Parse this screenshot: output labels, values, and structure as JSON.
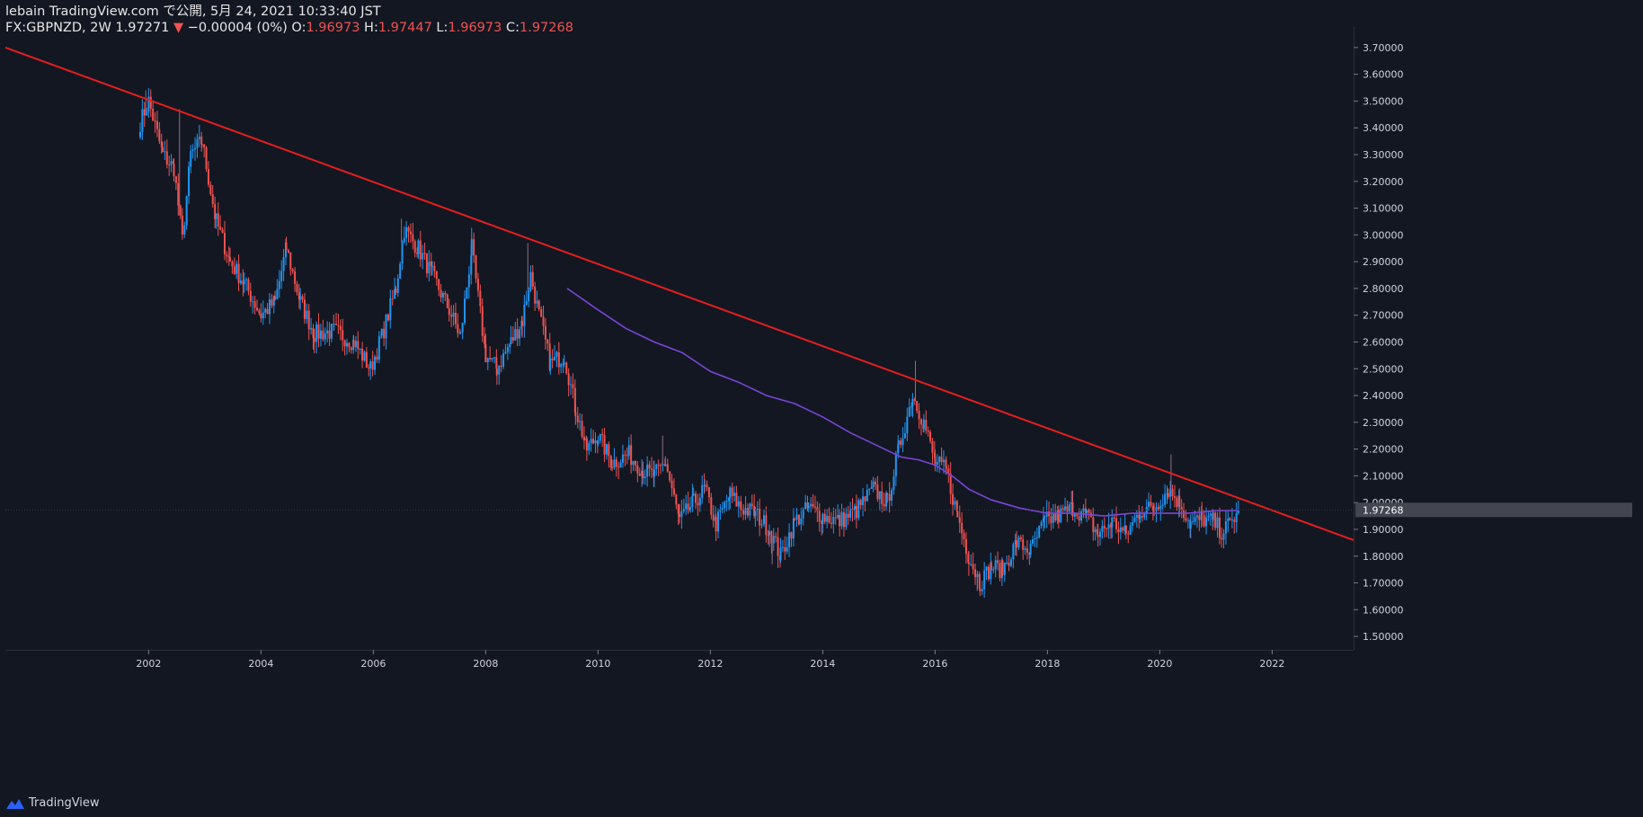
{
  "header": {
    "line1": "lebain TradingView.com で公開, 5月 24, 2021 10:33:40 JST",
    "symbol": "FX:GBPNZD, 2W",
    "last": "1.97271",
    "arrow": "▼",
    "change": "−0.00004 (0%)",
    "o_label": "O:",
    "o_val": "1.96973",
    "h_label": "H:",
    "h_val": "1.97447",
    "l_label": "L:",
    "l_val": "1.96973",
    "c_label": "C:",
    "c_val": "1.97268"
  },
  "footer": {
    "brand": "TradingView",
    "icon": "tradingview-logo-icon"
  },
  "colors": {
    "background": "#131722",
    "up": "#2196f3",
    "down": "#ef5350",
    "trendline": "#e61e1e",
    "ma": "#7b45d6",
    "grid_text": "#d1d4dc",
    "price_tag": "#434651"
  },
  "chart_data": {
    "type": "candlestick",
    "symbol": "FX:GBPNZD",
    "interval": "2W",
    "ylim": [
      1.45,
      3.75
    ],
    "xlim": [
      1999.45,
      2023.45
    ],
    "yticks": [
      "1.50000",
      "1.60000",
      "1.70000",
      "1.80000",
      "1.90000",
      "2.00000",
      "2.10000",
      "2.20000",
      "2.30000",
      "2.40000",
      "2.50000",
      "2.60000",
      "2.70000",
      "2.80000",
      "2.90000",
      "3.00000",
      "3.10000",
      "3.20000",
      "3.30000",
      "3.40000",
      "3.50000",
      "3.60000",
      "3.70000"
    ],
    "xticks": [
      "2002",
      "2004",
      "2006",
      "2008",
      "2010",
      "2012",
      "2014",
      "2016",
      "2018",
      "2020",
      "2022"
    ],
    "last_price": "1.97268",
    "close_path": [
      [
        2001.85,
        3.42
      ],
      [
        2002.0,
        3.5
      ],
      [
        2002.25,
        3.3
      ],
      [
        2002.45,
        3.25
      ],
      [
        2002.6,
        2.98
      ],
      [
        2002.75,
        3.3
      ],
      [
        2002.95,
        3.35
      ],
      [
        2003.2,
        3.05
      ],
      [
        2003.45,
        2.9
      ],
      [
        2003.7,
        2.82
      ],
      [
        2004.0,
        2.7
      ],
      [
        2004.25,
        2.75
      ],
      [
        2004.45,
        2.95
      ],
      [
        2004.7,
        2.75
      ],
      [
        2004.95,
        2.63
      ],
      [
        2005.3,
        2.64
      ],
      [
        2005.65,
        2.6
      ],
      [
        2005.95,
        2.5
      ],
      [
        2006.15,
        2.62
      ],
      [
        2006.4,
        2.8
      ],
      [
        2006.55,
        3.02
      ],
      [
        2006.8,
        2.95
      ],
      [
        2007.05,
        2.85
      ],
      [
        2007.35,
        2.72
      ],
      [
        2007.55,
        2.62
      ],
      [
        2007.75,
        2.95
      ],
      [
        2008.0,
        2.55
      ],
      [
        2008.2,
        2.5
      ],
      [
        2008.45,
        2.6
      ],
      [
        2008.65,
        2.68
      ],
      [
        2008.8,
        2.85
      ],
      [
        2008.95,
        2.7
      ],
      [
        2009.15,
        2.52
      ],
      [
        2009.4,
        2.55
      ],
      [
        2009.6,
        2.35
      ],
      [
        2009.8,
        2.2
      ],
      [
        2010.0,
        2.25
      ],
      [
        2010.25,
        2.15
      ],
      [
        2010.55,
        2.18
      ],
      [
        2010.8,
        2.12
      ],
      [
        2011.0,
        2.1
      ],
      [
        2011.2,
        2.15
      ],
      [
        2011.45,
        1.93
      ],
      [
        2011.7,
        2.0
      ],
      [
        2011.9,
        2.05
      ],
      [
        2012.1,
        1.92
      ],
      [
        2012.35,
        2.03
      ],
      [
        2012.55,
        1.98
      ],
      [
        2012.8,
        1.96
      ],
      [
        2013.05,
        1.9
      ],
      [
        2013.25,
        1.8
      ],
      [
        2013.5,
        1.93
      ],
      [
        2013.75,
        1.98
      ],
      [
        2014.0,
        1.95
      ],
      [
        2014.3,
        1.93
      ],
      [
        2014.6,
        1.97
      ],
      [
        2014.9,
        2.05
      ],
      [
        2015.15,
        2.0
      ],
      [
        2015.35,
        2.2
      ],
      [
        2015.6,
        2.4
      ],
      [
        2015.8,
        2.3
      ],
      [
        2016.0,
        2.15
      ],
      [
        2016.2,
        2.12
      ],
      [
        2016.4,
        1.95
      ],
      [
        2016.6,
        1.8
      ],
      [
        2016.8,
        1.7
      ],
      [
        2017.0,
        1.76
      ],
      [
        2017.2,
        1.75
      ],
      [
        2017.45,
        1.85
      ],
      [
        2017.7,
        1.82
      ],
      [
        2017.95,
        1.93
      ],
      [
        2018.2,
        1.95
      ],
      [
        2018.45,
        1.98
      ],
      [
        2018.7,
        1.95
      ],
      [
        2018.9,
        1.88
      ],
      [
        2019.15,
        1.93
      ],
      [
        2019.4,
        1.88
      ],
      [
        2019.65,
        1.97
      ],
      [
        2019.9,
        1.98
      ],
      [
        2020.15,
        2.05
      ],
      [
        2020.35,
        2.0
      ],
      [
        2020.55,
        1.92
      ],
      [
        2020.75,
        1.94
      ],
      [
        2020.95,
        1.93
      ],
      [
        2021.1,
        1.89
      ],
      [
        2021.25,
        1.92
      ],
      [
        2021.4,
        1.97
      ]
    ],
    "wick_extremes": [
      [
        2001.95,
        3.54
      ],
      [
        2002.55,
        3.47
      ],
      [
        2006.5,
        3.06
      ],
      [
        2007.75,
        2.99
      ],
      [
        2008.75,
        2.97
      ],
      [
        2009.6,
        2.31
      ],
      [
        2011.15,
        2.25
      ],
      [
        2013.1,
        1.77
      ],
      [
        2015.65,
        2.53
      ],
      [
        2016.75,
        1.67
      ],
      [
        2020.2,
        2.18
      ]
    ],
    "trendline": {
      "from": [
        1999.45,
        3.7
      ],
      "to": [
        2023.45,
        1.86
      ]
    },
    "moving_average": [
      [
        2009.45,
        2.8
      ],
      [
        2010.0,
        2.72
      ],
      [
        2010.5,
        2.65
      ],
      [
        2011.0,
        2.6
      ],
      [
        2011.5,
        2.56
      ],
      [
        2012.0,
        2.49
      ],
      [
        2012.5,
        2.45
      ],
      [
        2013.0,
        2.4
      ],
      [
        2013.5,
        2.37
      ],
      [
        2014.0,
        2.32
      ],
      [
        2014.5,
        2.26
      ],
      [
        2015.0,
        2.21
      ],
      [
        2015.4,
        2.17
      ],
      [
        2015.7,
        2.16
      ],
      [
        2016.0,
        2.14
      ],
      [
        2016.3,
        2.1
      ],
      [
        2016.6,
        2.05
      ],
      [
        2017.0,
        2.01
      ],
      [
        2017.5,
        1.98
      ],
      [
        2018.0,
        1.96
      ],
      [
        2018.5,
        1.96
      ],
      [
        2019.0,
        1.95
      ],
      [
        2019.5,
        1.96
      ],
      [
        2020.0,
        1.96
      ],
      [
        2020.5,
        1.96
      ],
      [
        2021.0,
        1.97
      ],
      [
        2021.4,
        1.97
      ]
    ]
  }
}
